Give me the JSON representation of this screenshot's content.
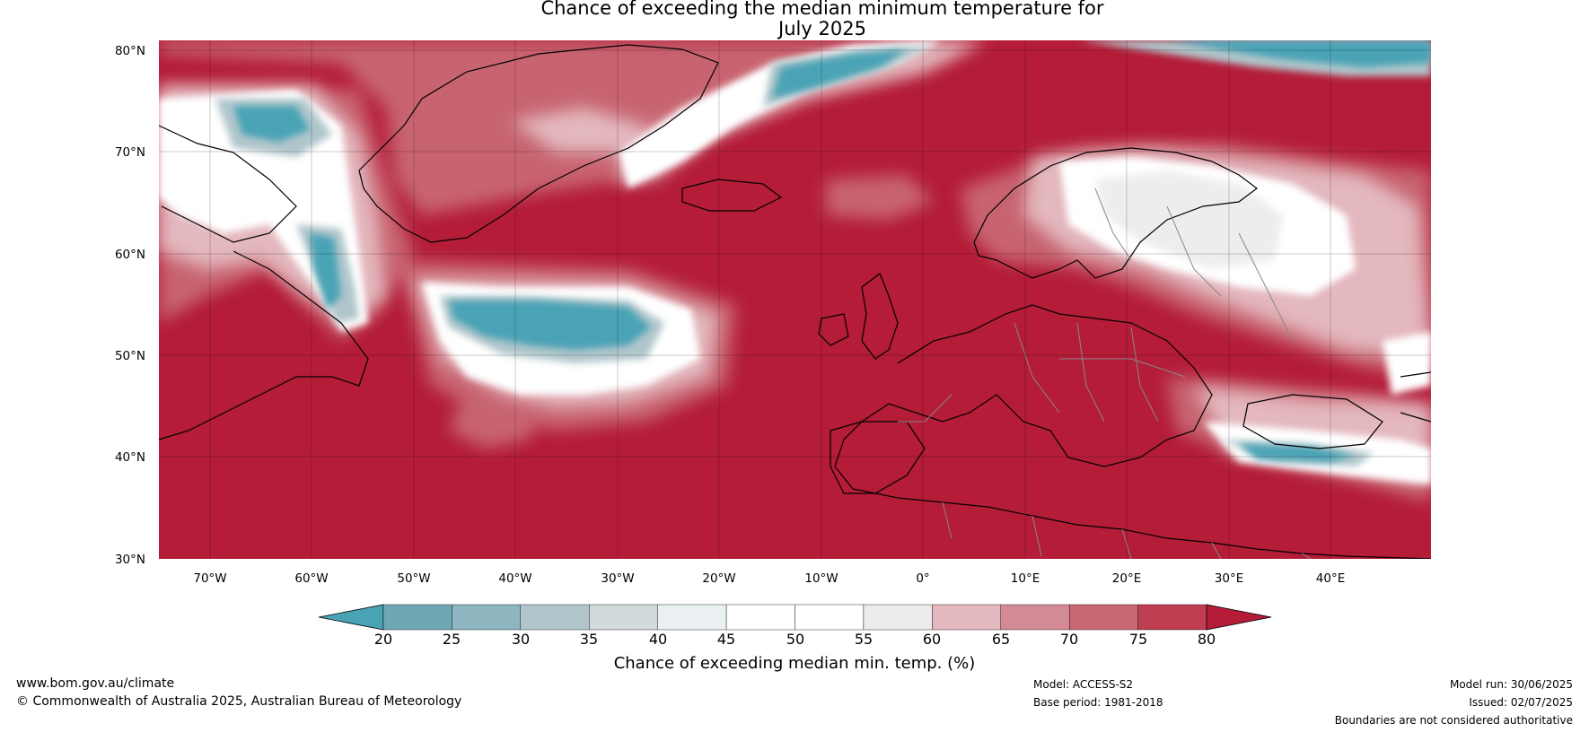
{
  "title_line1": "Chance of exceeding the median minimum temperature for",
  "title_line2": "July 2025",
  "map": {
    "lat_labels": [
      "80°N",
      "70°N",
      "60°N",
      "50°N",
      "40°N",
      "30°N"
    ],
    "lon_labels": [
      "70°W",
      "60°W",
      "50°W",
      "40°W",
      "30°W",
      "20°W",
      "10°W",
      "0°",
      "10°E",
      "20°E",
      "30°E",
      "40°E"
    ],
    "colors": {
      "below": "#4aa3b5",
      "above": "#b41c38",
      "coast": "#000000",
      "border": "#888888"
    }
  },
  "colorbar": {
    "title": "Chance of exceeding median min. temp. (%)",
    "ticks": [
      "20",
      "25",
      "30",
      "35",
      "40",
      "45",
      "50",
      "55",
      "60",
      "65",
      "70",
      "75",
      "80"
    ],
    "colors": [
      "#4aa3b5",
      "#6ea8b3",
      "#8db6c1",
      "#b0c6cb",
      "#d2dadb",
      "#ebf1f3",
      "#ffffff",
      "#ffffff",
      "#ececec",
      "#e3b8be",
      "#d48a94",
      "#c96873",
      "#bf3f51",
      "#b41c38"
    ]
  },
  "footer": {
    "website": "www.bom.gov.au/climate",
    "copyright": "© Commonwealth of Australia 2025, Australian Bureau of Meteorology",
    "model": "Model: ACCESS-S2",
    "base_period": "Base period: 1981-2018",
    "model_run": "Model run: 30/06/2025",
    "issued": "Issued: 02/07/2025",
    "boundaries": "Boundaries are not considered authoritative"
  }
}
